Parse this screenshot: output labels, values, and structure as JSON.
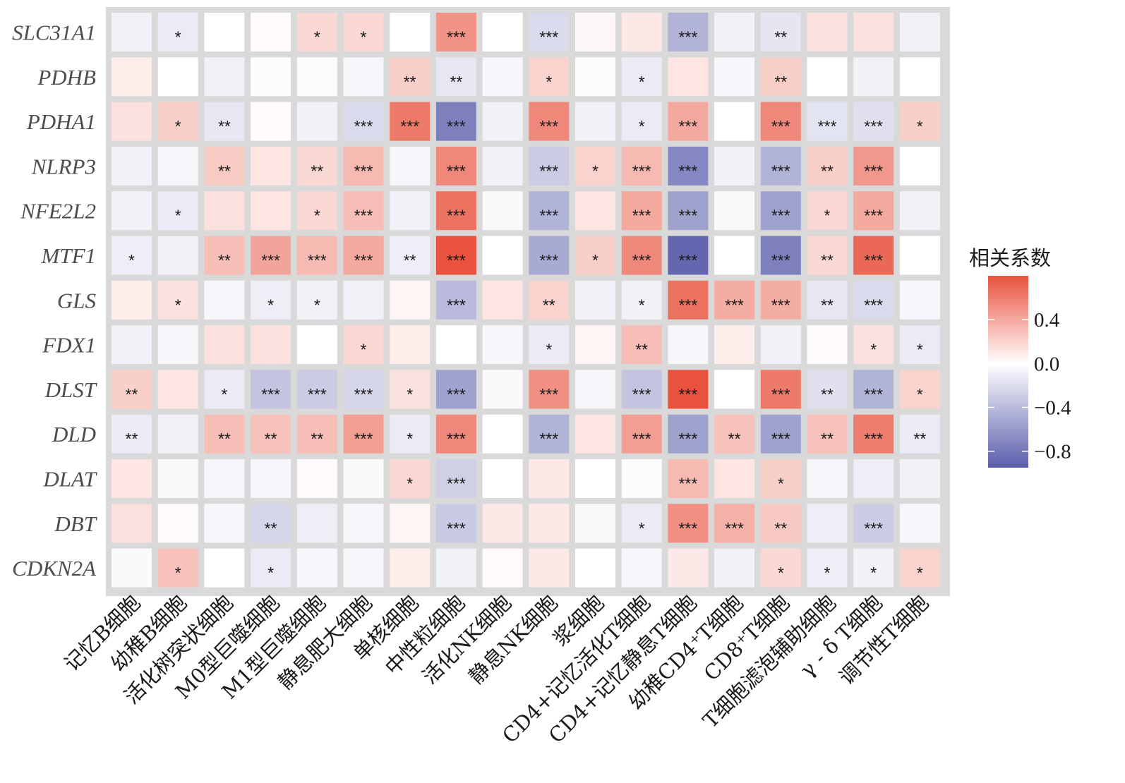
{
  "chart_data": {
    "type": "heatmap",
    "rows": [
      "SLC31A1",
      "PDHB",
      "PDHA1",
      "NLRP3",
      "NFE2L2",
      "MTF1",
      "GLS",
      "FDX1",
      "DLST",
      "DLD",
      "DLAT",
      "DBT",
      "CDKN2A"
    ],
    "columns": [
      "记忆B细胞",
      "幼稚B细胞",
      "活化树突状细胞",
      "M0型巨噬细胞",
      "M1型巨噬细胞",
      "静息肥大细胞",
      "单核细胞",
      "中性粒细胞",
      "活化NK细胞",
      "静息NK细胞",
      "浆细胞",
      "CD4+记忆活化T细胞",
      "CD4+记忆静息T细胞",
      "幼稚CD4⁺T细胞",
      "CD8⁺T细胞",
      "T细胞滤泡辅助细胞",
      "γ - δ T细胞",
      "调节性T细胞"
    ],
    "values": [
      [
        -0.08,
        -0.12,
        0.0,
        0.02,
        0.18,
        0.18,
        0.0,
        0.5,
        0.0,
        -0.22,
        0.03,
        0.1,
        -0.45,
        -0.08,
        -0.15,
        0.14,
        0.14,
        -0.08
      ],
      [
        0.08,
        0.0,
        -0.08,
        -0.02,
        -0.02,
        -0.05,
        0.22,
        -0.14,
        -0.05,
        0.2,
        -0.02,
        -0.12,
        0.12,
        -0.05,
        0.22,
        0.0,
        -0.08,
        0.0
      ],
      [
        0.14,
        0.22,
        -0.14,
        0.02,
        -0.08,
        -0.22,
        0.62,
        -0.75,
        -0.08,
        0.55,
        -0.08,
        -0.12,
        0.4,
        0.0,
        0.55,
        -0.16,
        -0.18,
        0.22
      ],
      [
        -0.08,
        -0.05,
        0.24,
        0.12,
        0.18,
        0.32,
        -0.05,
        0.55,
        -0.08,
        -0.3,
        0.2,
        0.32,
        -0.7,
        -0.08,
        -0.45,
        0.22,
        0.48,
        0.0
      ],
      [
        -0.08,
        -0.12,
        0.14,
        0.12,
        0.18,
        0.3,
        -0.08,
        0.65,
        -0.03,
        -0.45,
        0.12,
        0.4,
        -0.55,
        -0.03,
        -0.55,
        0.18,
        0.4,
        -0.08
      ],
      [
        -0.1,
        -0.08,
        0.3,
        0.42,
        0.32,
        0.4,
        -0.1,
        0.82,
        0.0,
        -0.5,
        0.22,
        0.55,
        -0.9,
        0.0,
        -0.75,
        0.18,
        0.7,
        0.0
      ],
      [
        0.08,
        0.14,
        -0.05,
        -0.1,
        -0.08,
        -0.08,
        0.04,
        -0.4,
        0.12,
        0.2,
        -0.08,
        -0.08,
        0.65,
        0.38,
        0.38,
        -0.14,
        -0.22,
        -0.05
      ],
      [
        -0.08,
        -0.05,
        0.14,
        0.14,
        0.0,
        0.18,
        0.08,
        0.0,
        -0.05,
        -0.12,
        0.04,
        0.3,
        -0.05,
        0.08,
        -0.08,
        0.02,
        0.14,
        -0.12
      ],
      [
        0.22,
        0.12,
        -0.12,
        -0.35,
        -0.3,
        -0.24,
        0.14,
        -0.55,
        -0.03,
        0.52,
        -0.05,
        -0.35,
        0.82,
        0.0,
        0.62,
        -0.18,
        -0.45,
        0.2
      ],
      [
        -0.12,
        -0.08,
        0.3,
        0.28,
        0.3,
        0.45,
        -0.12,
        0.55,
        0.0,
        -0.45,
        0.12,
        0.45,
        -0.55,
        0.28,
        -0.55,
        0.28,
        0.6,
        -0.12
      ],
      [
        0.12,
        -0.03,
        -0.05,
        -0.05,
        0.02,
        -0.03,
        0.18,
        -0.28,
        0.0,
        0.1,
        0.0,
        -0.02,
        0.32,
        0.12,
        0.22,
        -0.05,
        -0.1,
        -0.08
      ],
      [
        0.14,
        0.02,
        -0.05,
        -0.24,
        -0.1,
        -0.05,
        0.04,
        -0.32,
        0.1,
        0.1,
        -0.03,
        -0.12,
        0.52,
        0.36,
        0.25,
        -0.1,
        -0.3,
        -0.05
      ],
      [
        -0.03,
        0.28,
        0.0,
        -0.12,
        -0.05,
        -0.05,
        0.08,
        -0.08,
        0.02,
        0.1,
        0.0,
        -0.05,
        0.1,
        -0.08,
        0.18,
        -0.1,
        -0.08,
        0.2
      ]
    ],
    "significance": [
      [
        "",
        "*",
        "",
        "",
        "*",
        "*",
        "",
        "***",
        "",
        "***",
        "",
        "",
        "***",
        "",
        "**",
        "",
        "",
        ""
      ],
      [
        "",
        "",
        "",
        "",
        "",
        "",
        "**",
        "**",
        "",
        "*",
        "",
        "*",
        "",
        "",
        "**",
        "",
        "",
        ""
      ],
      [
        "",
        "*",
        "**",
        "",
        "",
        "***",
        "***",
        "***",
        "",
        "***",
        "",
        "*",
        "***",
        "",
        "***",
        "***",
        "***",
        "*"
      ],
      [
        "",
        "",
        "**",
        "",
        "**",
        "***",
        "",
        "***",
        "",
        "***",
        "*",
        "***",
        "***",
        "",
        "***",
        "**",
        "***",
        ""
      ],
      [
        "",
        "*",
        "",
        "",
        "*",
        "***",
        "",
        "***",
        "",
        "***",
        "",
        "***",
        "***",
        "",
        "***",
        "*",
        "***",
        ""
      ],
      [
        "*",
        "",
        "**",
        "***",
        "***",
        "***",
        "**",
        "***",
        "",
        "***",
        "*",
        "***",
        "***",
        "",
        "***",
        "**",
        "***",
        ""
      ],
      [
        "",
        "*",
        "",
        "*",
        "*",
        "",
        "",
        "***",
        "",
        "**",
        "",
        "*",
        "***",
        "***",
        "***",
        "**",
        "***",
        ""
      ],
      [
        "",
        "",
        "",
        "",
        "",
        "*",
        "",
        "",
        "",
        "*",
        "",
        "**",
        "",
        "",
        "",
        "",
        "*",
        "*"
      ],
      [
        "**",
        "",
        "*",
        "***",
        "***",
        "***",
        "*",
        "***",
        "",
        "***",
        "",
        "***",
        "***",
        "",
        "***",
        "**",
        "***",
        "*"
      ],
      [
        "**",
        "",
        "**",
        "**",
        "**",
        "***",
        "*",
        "***",
        "",
        "***",
        "",
        "***",
        "***",
        "**",
        "***",
        "**",
        "***",
        "**"
      ],
      [
        "",
        "",
        "",
        "",
        "",
        "",
        "*",
        "***",
        "",
        "",
        "",
        "",
        "***",
        "",
        "*",
        "",
        "",
        ""
      ],
      [
        "",
        "",
        "",
        "**",
        "",
        "",
        "",
        "***",
        "",
        "",
        "",
        "*",
        "***",
        "***",
        "**",
        "",
        "***",
        ""
      ],
      [
        "",
        "*",
        "",
        "*",
        "",
        "",
        "",
        "",
        "",
        "",
        "",
        "",
        "",
        "",
        "*",
        "*",
        "*",
        "*"
      ]
    ],
    "legend": {
      "title": "相关系数",
      "ticks": [
        0.4,
        0.0,
        -0.4,
        -0.8
      ],
      "tick_labels": [
        "0.4",
        "0.0",
        "−0.4",
        "−0.8"
      ],
      "range": [
        -0.95,
        0.8
      ]
    },
    "colors": {
      "high": "#e8523e",
      "mid": "#ffffff",
      "low": "#5b5eab",
      "panel_background": "#d9d9d9"
    }
  }
}
